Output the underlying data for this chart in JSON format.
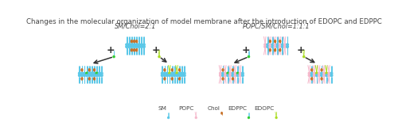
{
  "title": "Changes in the molecular organization of model membrane after the introduction of EDOPC and EDPPC",
  "title_fontsize": 6.2,
  "bg_color": "#ffffff",
  "label_sm_chol": "SM/Chol=2:1",
  "label_popc_sm_chol": "POPC/SM/Chol=1:1:1",
  "blue": "#5bc8e8",
  "pink": "#f5b8cb",
  "green": "#33cc33",
  "green_light": "#aadd22",
  "brown": "#c8732a",
  "dark": "#333333"
}
